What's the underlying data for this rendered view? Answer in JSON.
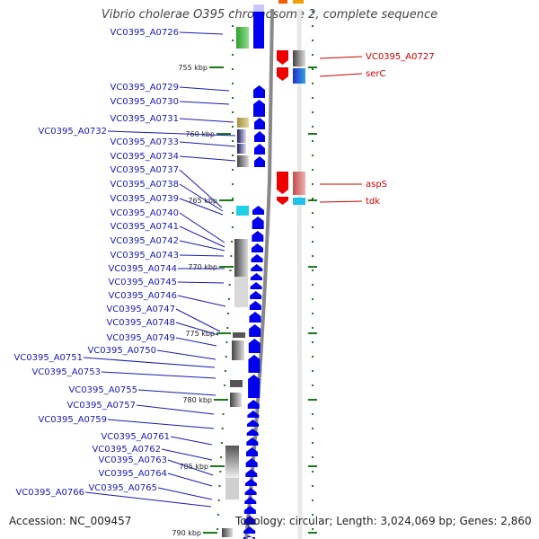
{
  "title": "Vibrio cholerae O395 chromosome 2, complete sequence",
  "accession": "Accession: NC_009457",
  "summary": "Topology: circular; Length: 3,024,069 bp; Genes: 2,860",
  "colors": {
    "left_label": "#1a1ab0",
    "right_label": "#cc0000",
    "forward_gene": "#0000ee",
    "reverse_gene": "#ee0000",
    "tick": "#1a7a1a"
  },
  "ruler": [
    {
      "label": "755 kbp"
    },
    {
      "label": "760 kbp"
    },
    {
      "label": "765 kbp"
    },
    {
      "label": "770 kbp"
    },
    {
      "label": "775 kbp"
    },
    {
      "label": "780 kbp"
    },
    {
      "label": "785 kbp"
    },
    {
      "label": "790 kbp"
    }
  ],
  "left_genes": [
    {
      "label": "VC0395_A0726"
    },
    {
      "label": "VC0395_A0729"
    },
    {
      "label": "VC0395_A0730"
    },
    {
      "label": "VC0395_A0731"
    },
    {
      "label": "VC0395_A0732"
    },
    {
      "label": "VC0395_A0733"
    },
    {
      "label": "VC0395_A0734"
    },
    {
      "label": "VC0395_A0737"
    },
    {
      "label": "VC0395_A0738"
    },
    {
      "label": "VC0395_A0739"
    },
    {
      "label": "VC0395_A0740"
    },
    {
      "label": "VC0395_A0741"
    },
    {
      "label": "VC0395_A0742"
    },
    {
      "label": "VC0395_A0743"
    },
    {
      "label": "VC0395_A0744"
    },
    {
      "label": "VC0395_A0745"
    },
    {
      "label": "VC0395_A0746"
    },
    {
      "label": "VC0395_A0747"
    },
    {
      "label": "VC0395_A0748"
    },
    {
      "label": "VC0395_A0749"
    },
    {
      "label": "VC0395_A0750"
    },
    {
      "label": "VC0395_A0751"
    },
    {
      "label": "VC0395_A0753"
    },
    {
      "label": "VC0395_A0755"
    },
    {
      "label": "VC0395_A0757"
    },
    {
      "label": "VC0395_A0759"
    },
    {
      "label": "VC0395_A0761"
    },
    {
      "label": "VC0395_A0762"
    },
    {
      "label": "VC0395_A0763"
    },
    {
      "label": "VC0395_A0764"
    },
    {
      "label": "VC0395_A0765"
    },
    {
      "label": "VC0395_A0766"
    }
  ],
  "right_genes": [
    {
      "label": "VC0395_A0727"
    },
    {
      "label": "serC"
    },
    {
      "label": "aspS"
    },
    {
      "label": "tdk"
    }
  ]
}
